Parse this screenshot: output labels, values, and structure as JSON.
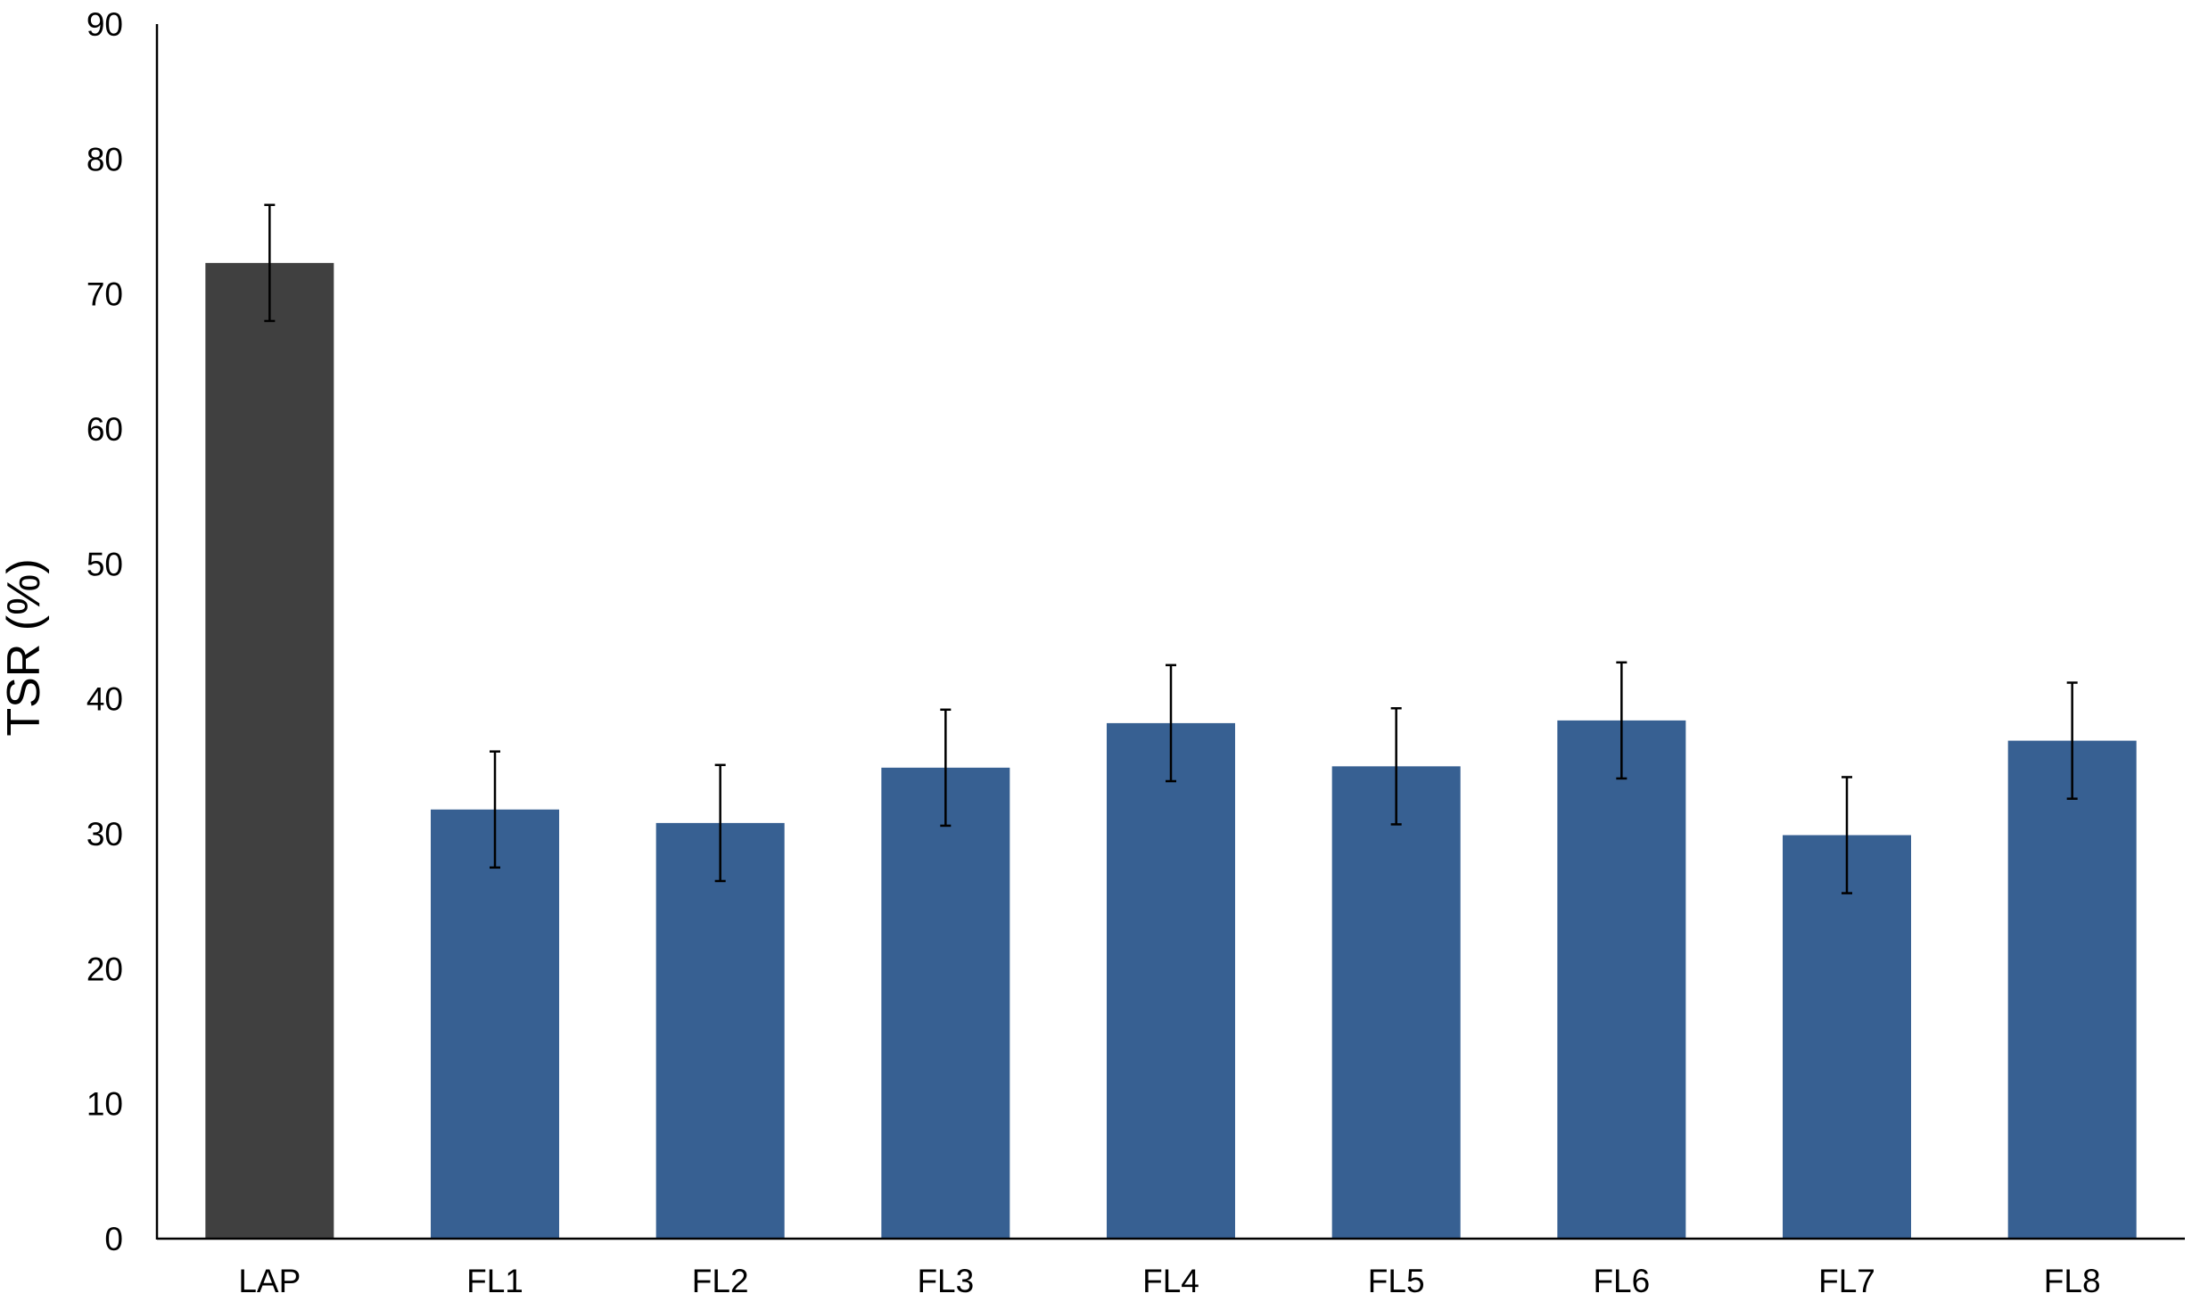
{
  "chart_data": {
    "type": "bar",
    "title": "",
    "xlabel": "",
    "ylabel": "TSR (%)",
    "ylim": [
      0,
      90
    ],
    "yticks": [
      0,
      10,
      20,
      30,
      40,
      50,
      60,
      70,
      80,
      90
    ],
    "grid": false,
    "legend": "none",
    "categories": [
      "LAP",
      "FL1",
      "FL2",
      "FL3",
      "FL4",
      "FL5",
      "FL6",
      "FL7",
      "FL8"
    ],
    "values": [
      72.3,
      31.8,
      30.8,
      34.9,
      38.2,
      35.0,
      38.4,
      29.9,
      36.9
    ],
    "errors": [
      4.3,
      4.3,
      4.3,
      4.3,
      4.3,
      4.3,
      4.3,
      4.3,
      4.3
    ],
    "colors": [
      "#404040",
      "#376092",
      "#376092",
      "#376092",
      "#376092",
      "#376092",
      "#376092",
      "#376092",
      "#376092"
    ]
  }
}
